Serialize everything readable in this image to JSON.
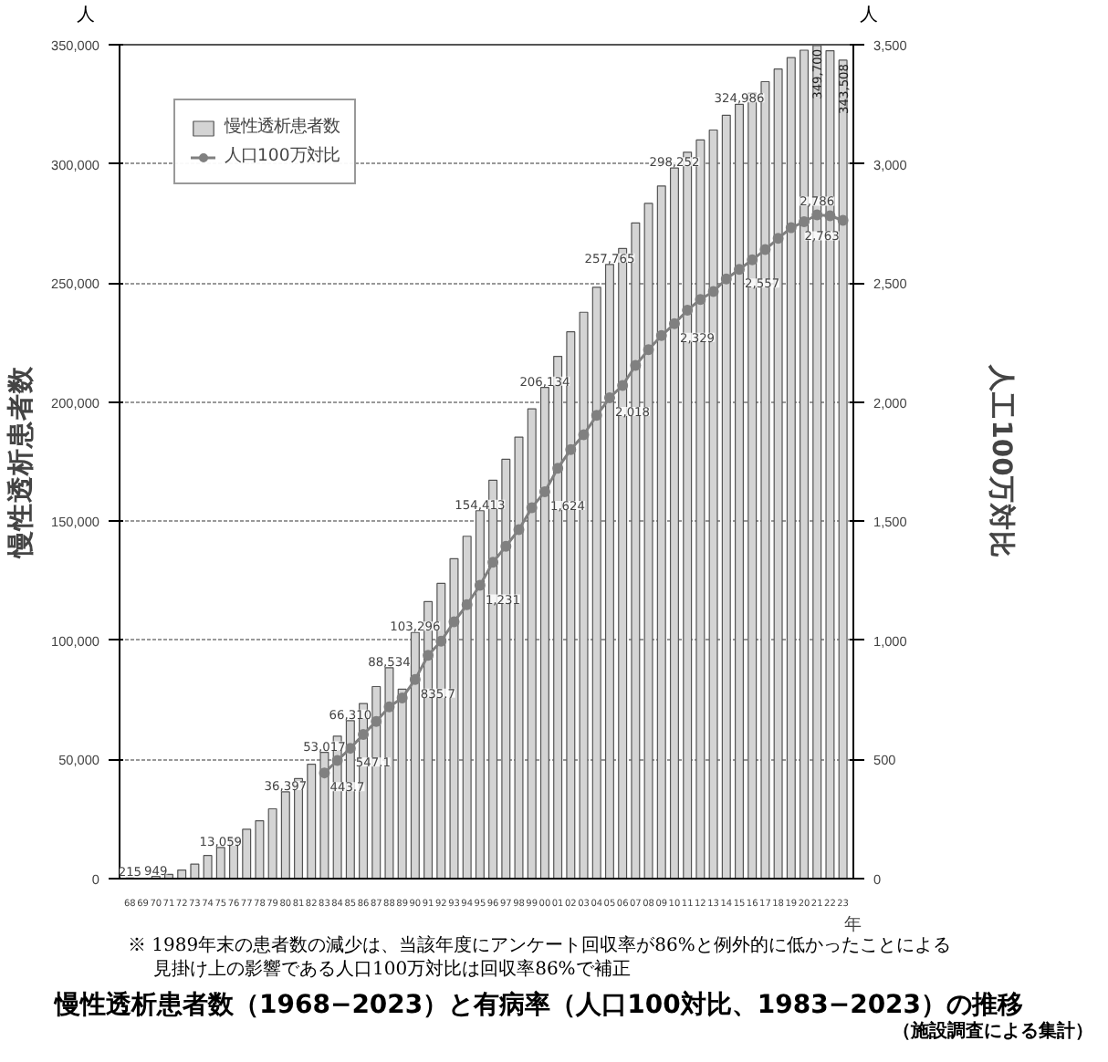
{
  "chart_data": {
    "type": "bar",
    "title": "慢性透析患者数（1968−2023）と有病率（人口100対比、1983−2023）の推移",
    "ylabel": "慢性透析患者数",
    "y2label": "人工100万対比",
    "annotations": [
      "人",
      "人",
      "年",
      "※ 1989年末の患者数の減少は、当該年度にアンケート回収率が86%と例外的に低かったことによる",
      "見掛け上の影響である人口100万対比は回収率86%で補正",
      "（施設調査による集計）"
    ],
    "categories": [
      "68",
      "69",
      "70",
      "71",
      "72",
      "73",
      "74",
      "75",
      "76",
      "77",
      "78",
      "79",
      "80",
      "81",
      "82",
      "83",
      "84",
      "85",
      "86",
      "87",
      "88",
      "89",
      "90",
      "91",
      "92",
      "93",
      "94",
      "95",
      "96",
      "97",
      "98",
      "99",
      "00",
      "01",
      "02",
      "03",
      "04",
      "05",
      "06",
      "07",
      "08",
      "09",
      "10",
      "11",
      "12",
      "13",
      "14",
      "15",
      "16",
      "17",
      "18",
      "19",
      "20",
      "21",
      "22",
      "23"
    ],
    "series": [
      {
        "name": "慢性透析患者数",
        "color": "#d4d4d4",
        "values": [
          215,
          null,
          949,
          1800,
          3600,
          6100,
          9700,
          13059,
          16800,
          20700,
          24300,
          29300,
          36397,
          42000,
          48000,
          53017,
          59800,
          66310,
          73500,
          80600,
          88534,
          79500,
          103296,
          116300,
          123900,
          134300,
          143700,
          154413,
          167200,
          176000,
          185300,
          197200,
          206134,
          219200,
          229500,
          237700,
          248200,
          257765,
          264500,
          275200,
          283400,
          290700,
          298252,
          304900,
          310000,
          314200,
          320400,
          324986,
          329600,
          334500,
          339800,
          344600,
          347700,
          349700,
          347500,
          343508
        ],
        "value_labels": [
          "215",
          null,
          "949",
          null,
          null,
          null,
          null,
          "13,059",
          null,
          null,
          null,
          null,
          "36,397",
          null,
          null,
          "53,017",
          null,
          "66,310",
          null,
          null,
          "88,534",
          null,
          "103,296",
          null,
          null,
          null,
          null,
          "154,413",
          null,
          null,
          null,
          null,
          "206,134",
          null,
          null,
          null,
          null,
          "257,765",
          null,
          null,
          null,
          null,
          "298,252",
          null,
          null,
          null,
          null,
          "324,986",
          null,
          null,
          null,
          null,
          null,
          "349,700",
          null,
          "343,508"
        ]
      },
      {
        "type": "line",
        "name": "人口100万対比",
        "axis": "y2",
        "color": "#808080",
        "marker": "circle",
        "x": [
          "83",
          "84",
          "85",
          "86",
          "87",
          "88",
          "89",
          "90",
          "91",
          "92",
          "93",
          "94",
          "95",
          "96",
          "97",
          "98",
          "99",
          "00",
          "01",
          "02",
          "03",
          "04",
          "05",
          "06",
          "07",
          "08",
          "09",
          "10",
          "11",
          "12",
          "13",
          "14",
          "15",
          "16",
          "17",
          "18",
          "19",
          "20",
          "21",
          "22",
          "23"
        ],
        "values": [
          443.7,
          496,
          547.1,
          605,
          660,
          721,
          758,
          835.7,
          937,
          997,
          1078,
          1150,
          1231,
          1328,
          1395,
          1465,
          1557,
          1624,
          1722,
          1801,
          1863,
          1944,
          2018,
          2070,
          2154,
          2220,
          2279,
          2329,
          2386,
          2431,
          2464,
          2517,
          2557,
          2597,
          2640,
          2687,
          2732,
          2757,
          2786,
          2782,
          2763
        ],
        "value_labels": [
          "443.7",
          null,
          "547.1",
          null,
          null,
          null,
          null,
          "835.7",
          null,
          null,
          null,
          null,
          "1,231",
          null,
          null,
          null,
          null,
          "1,624",
          null,
          null,
          null,
          null,
          "2,018",
          null,
          null,
          null,
          null,
          "2,329",
          null,
          null,
          null,
          null,
          "2,557",
          null,
          null,
          null,
          null,
          null,
          "2,786",
          null,
          "2,763"
        ]
      }
    ],
    "ylim": [
      0,
      350000
    ],
    "yticks": [
      0,
      {
        "value": 50000,
        "label": "50,000"
      },
      {
        "value": 100000,
        "label": "100,000"
      },
      {
        "value": 150000,
        "label": "150,000"
      },
      {
        "value": 200000,
        "label": "200,000"
      },
      {
        "value": 250000,
        "label": "250,000"
      },
      {
        "value": 300000,
        "label": "300,000"
      },
      {
        "value": 350000,
        "label": "350,000"
      }
    ],
    "y2lim": [
      0,
      3500
    ],
    "y2ticks": [
      0,
      500,
      {
        "value": 1000,
        "label": "1,000"
      },
      {
        "value": 1500,
        "label": "1,500"
      },
      {
        "value": 2000,
        "label": "2,000"
      },
      {
        "value": 2500,
        "label": "2,500"
      },
      {
        "value": 3000,
        "label": "3,000"
      },
      {
        "value": 3500,
        "label": "3,500"
      }
    ],
    "grid": "y",
    "legend": "top left",
    "line_style": "solid"
  }
}
